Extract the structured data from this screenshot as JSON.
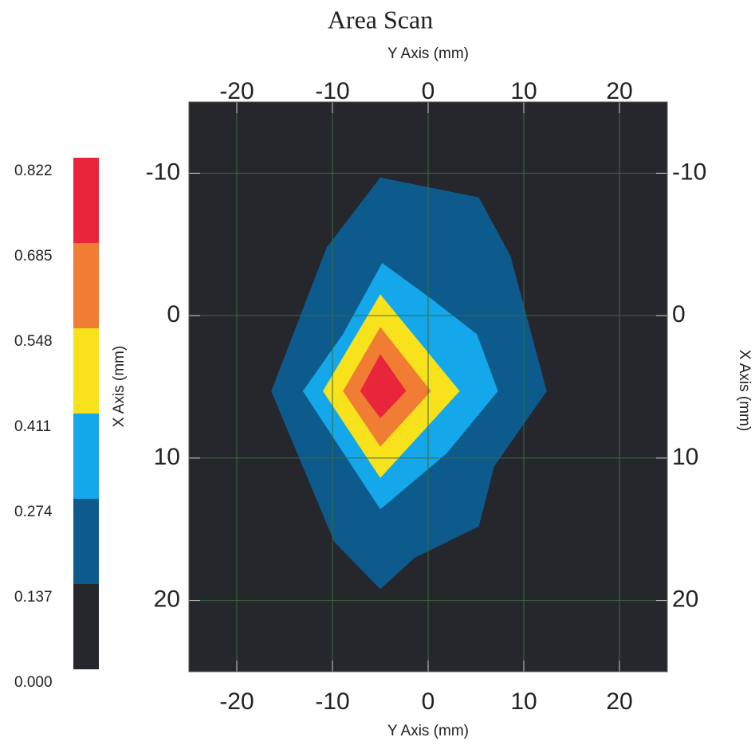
{
  "chart_data": {
    "type": "contour",
    "title": "Area Scan",
    "xlabel": "Y Axis (mm)",
    "ylabel": "X Axis (mm)",
    "xlim": [
      -25,
      25
    ],
    "ylim": [
      -15,
      25
    ],
    "y_inverted": true,
    "xticks": [
      -20,
      -10,
      0,
      10,
      20
    ],
    "yticks": [
      -10,
      0,
      10,
      20
    ],
    "grid": true,
    "levels": [
      {
        "value": 0,
        "label": "0.000"
      },
      0.137,
      0.274,
      0.411,
      0.548,
      0.685,
      0.822
    ],
    "colors": [
      "#26262d",
      "#0d5a8c",
      "#14a7ea",
      "#f7e21c",
      "#f07d33",
      "#e8253a"
    ],
    "regions": [
      {
        "level": 0.137,
        "color": "#0d5a8c",
        "x": [
          -5,
          5.3,
          8.6,
          12.4,
          6.9,
          5.3,
          -1.4,
          -5,
          -9.8,
          -16.4,
          -10.6
        ],
        "y": [
          -9.7,
          -8.3,
          -4.2,
          5.3,
          10.6,
          14.8,
          17.0,
          19.2,
          15.9,
          5.3,
          -4.8
        ]
      },
      {
        "level": 0.274,
        "color": "#14a7ea",
        "x": [
          -4.8,
          0.3,
          5.1,
          7.3,
          1.9,
          -5,
          -13.1,
          -8.9
        ],
        "y": [
          -3.7,
          -1.2,
          1.3,
          5.3,
          9.7,
          13.6,
          5.3,
          1.3
        ]
      },
      {
        "level": 0.411,
        "color": "#f7e21c",
        "x": [
          -5,
          3.3,
          -5,
          -11
        ],
        "y": [
          -1.5,
          5.3,
          11.4,
          5.3
        ]
      },
      {
        "level": 0.548,
        "color": "#f07d33",
        "x": [
          -5,
          0.3,
          -5,
          -8.9
        ],
        "y": [
          0.8,
          5.3,
          9.2,
          5.3
        ]
      },
      {
        "level": 0.685,
        "color": "#e8253a",
        "x": [
          -5,
          -2.3,
          -5,
          -7.1
        ],
        "y": [
          2.7,
          5.3,
          7.2,
          5.3
        ]
      }
    ]
  }
}
